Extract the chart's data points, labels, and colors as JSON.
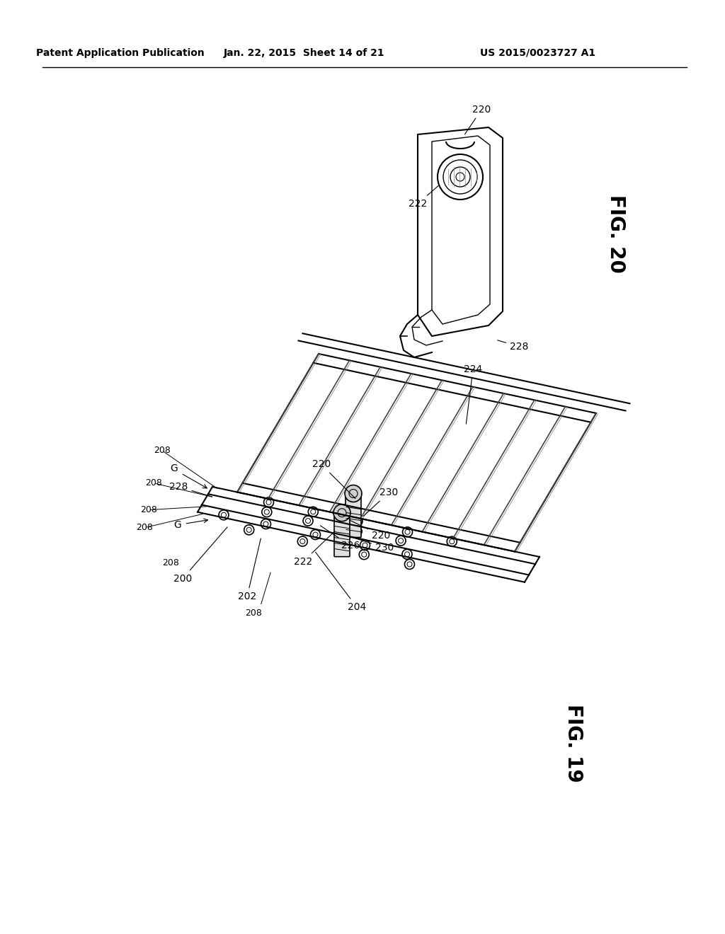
{
  "background_color": "#ffffff",
  "header_left": "Patent Application Publication",
  "header_center": "Jan. 22, 2015  Sheet 14 of 21",
  "header_right": "US 2015/0023727 A1",
  "fig20_label": "FIG. 20",
  "fig19_label": "FIG. 19",
  "fig20_refs": [
    "220",
    "222",
    "228"
  ],
  "fig19_refs": [
    "200",
    "202",
    "204",
    "208",
    "208",
    "220",
    "222",
    "224",
    "226",
    "228",
    "230",
    "G"
  ],
  "line_color": "#000000",
  "line_width": 1.2,
  "border_color": "#000000"
}
